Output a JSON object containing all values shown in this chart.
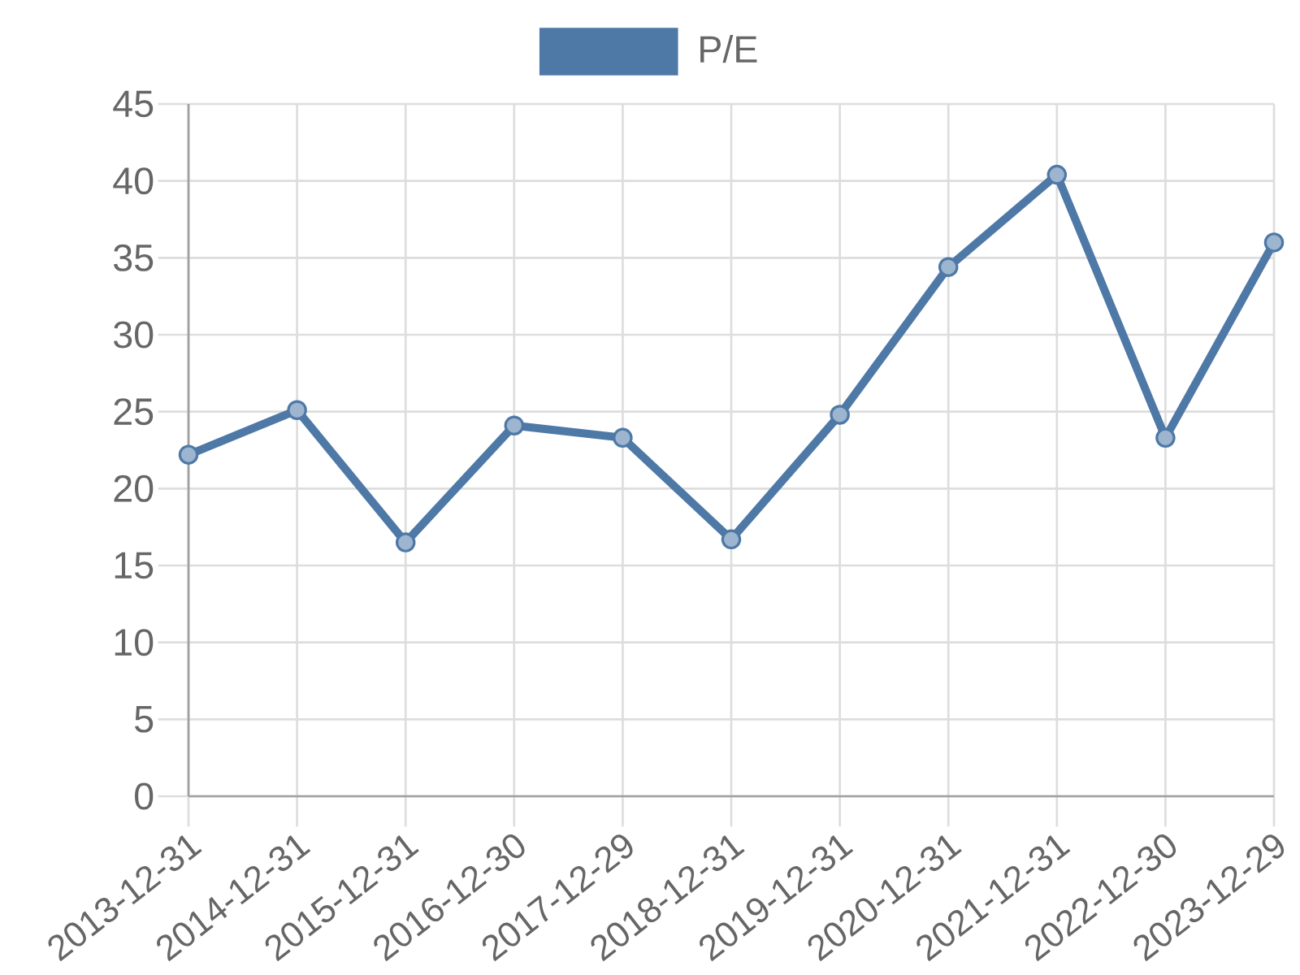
{
  "chart_data": {
    "type": "line",
    "categories": [
      "2013-12-31",
      "2014-12-31",
      "2015-12-31",
      "2016-12-30",
      "2017-12-29",
      "2018-12-31",
      "2019-12-31",
      "2020-12-31",
      "2021-12-31",
      "2022-12-30",
      "2023-12-29"
    ],
    "series": [
      {
        "name": "P/E",
        "color": "#4e79a7",
        "values": [
          22.2,
          25.1,
          16.5,
          24.1,
          23.3,
          16.7,
          24.8,
          34.4,
          40.4,
          23.3,
          36.0
        ]
      }
    ],
    "ylim": [
      0,
      45
    ],
    "yticks": [
      0,
      5,
      10,
      15,
      20,
      25,
      30,
      35,
      40,
      45
    ],
    "grid": true,
    "legend": "top",
    "marker": "circle",
    "line_style": "solid"
  }
}
